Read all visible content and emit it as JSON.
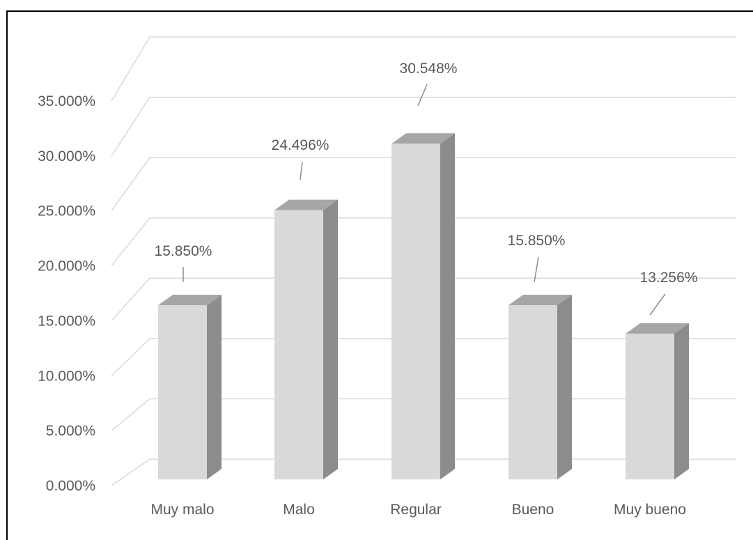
{
  "chart_data": {
    "type": "bar",
    "categories": [
      "Muy malo",
      "Malo",
      "Regular",
      "Bueno",
      "Muy bueno"
    ],
    "values": [
      15.85,
      24.496,
      30.548,
      15.85,
      13.256
    ],
    "data_labels": [
      "15.850%",
      "24.496%",
      "30.548%",
      "15.850%",
      "13.256%"
    ],
    "y_ticks": [
      "0.000%",
      "5.000%",
      "10.000%",
      "15.000%",
      "20.000%",
      "25.000%",
      "30.000%",
      "35.000%"
    ],
    "ylim": [
      0,
      35
    ],
    "grid": true,
    "legend": "none",
    "style": "3d-column",
    "colors": {
      "bar_front": "#d9d9d9",
      "bar_side": "#8c8c8c",
      "bar_top": "#a6a6a6",
      "grid": "#d9d9d9",
      "text": "#595959"
    }
  }
}
